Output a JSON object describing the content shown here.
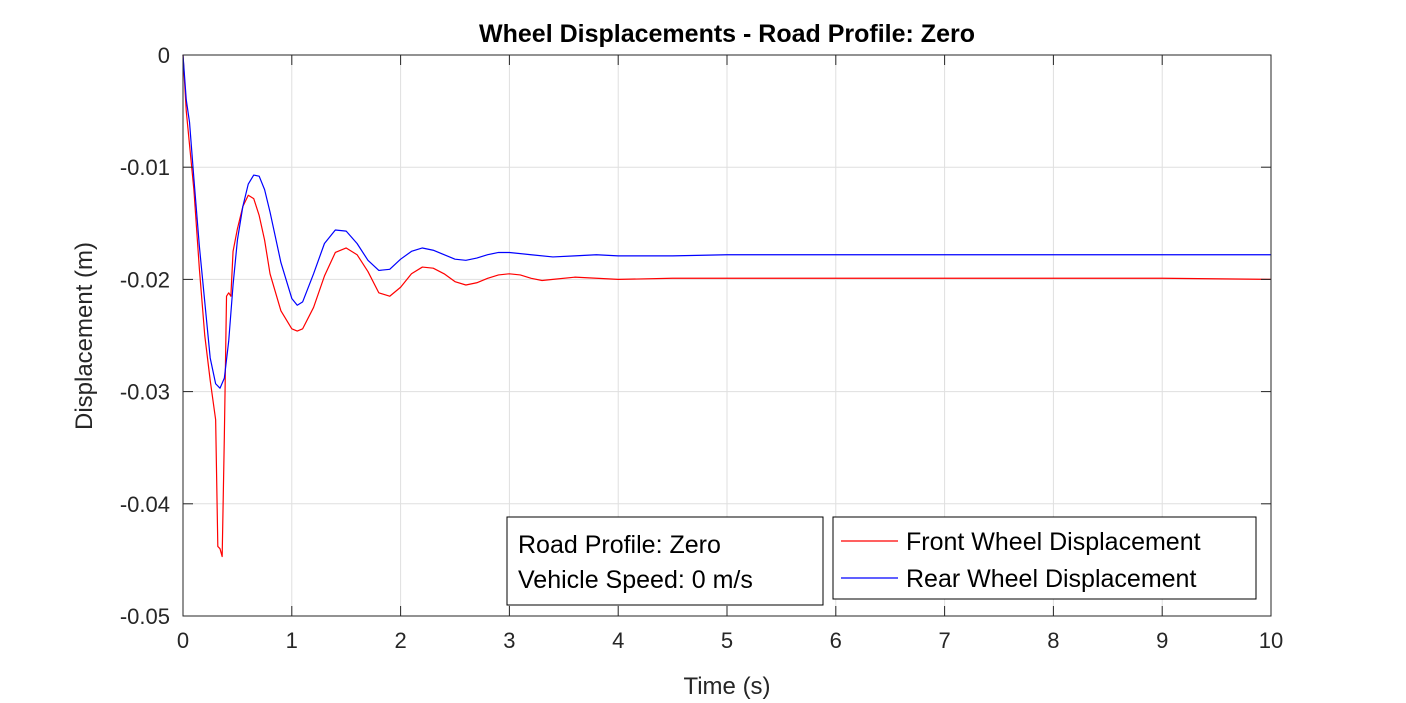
{
  "chart_data": {
    "type": "line",
    "title": "Wheel Displacements - Road Profile: Zero",
    "xlabel": "Time (s)",
    "ylabel": "Displacement (m)",
    "xlim": [
      0,
      10
    ],
    "ylim": [
      -0.05,
      0
    ],
    "xticks": [
      "0",
      "1",
      "2",
      "3",
      "4",
      "5",
      "6",
      "7",
      "8",
      "9",
      "10"
    ],
    "yticks": [
      "0",
      "-0.01",
      "-0.02",
      "-0.03",
      "-0.04",
      "-0.05"
    ],
    "grid": true,
    "legend_position": "bottom-right",
    "annotation": [
      "Road Profile: Zero",
      "Vehicle Speed: 0 m/s"
    ],
    "colors": {
      "front": "#ff0000",
      "rear": "#0000ff"
    },
    "series": [
      {
        "name": "Front Wheel Displacement",
        "color": "#ff0000",
        "x": [
          0,
          0.03,
          0.06,
          0.1,
          0.15,
          0.2,
          0.25,
          0.3,
          0.32,
          0.34,
          0.36,
          0.38,
          0.4,
          0.42,
          0.44,
          0.46,
          0.48,
          0.5,
          0.55,
          0.6,
          0.65,
          0.7,
          0.75,
          0.8,
          0.9,
          1.0,
          1.05,
          1.1,
          1.2,
          1.3,
          1.4,
          1.5,
          1.6,
          1.7,
          1.8,
          1.9,
          2.0,
          2.1,
          2.2,
          2.3,
          2.4,
          2.5,
          2.6,
          2.7,
          2.8,
          2.9,
          3.0,
          3.1,
          3.2,
          3.3,
          3.4,
          3.6,
          3.8,
          4.0,
          4.5,
          5.0,
          6.0,
          7.0,
          8.0,
          9.0,
          10.0
        ],
        "y": [
          0,
          -0.005,
          -0.008,
          -0.012,
          -0.019,
          -0.025,
          -0.029,
          -0.0325,
          -0.0438,
          -0.044,
          -0.0447,
          -0.034,
          -0.0215,
          -0.0212,
          -0.0215,
          -0.0175,
          -0.0165,
          -0.0155,
          -0.0135,
          -0.0125,
          -0.0128,
          -0.0143,
          -0.0165,
          -0.0195,
          -0.0228,
          -0.0244,
          -0.0246,
          -0.0244,
          -0.0225,
          -0.0197,
          -0.0176,
          -0.0172,
          -0.0178,
          -0.0193,
          -0.0212,
          -0.0215,
          -0.0207,
          -0.0195,
          -0.0189,
          -0.019,
          -0.0195,
          -0.0202,
          -0.0205,
          -0.0203,
          -0.0199,
          -0.0196,
          -0.0195,
          -0.0196,
          -0.0199,
          -0.0201,
          -0.02,
          -0.0198,
          -0.0199,
          -0.02,
          -0.0199,
          -0.0199,
          -0.0199,
          -0.0199,
          -0.0199,
          -0.0199,
          -0.02
        ]
      },
      {
        "name": "Rear Wheel Displacement",
        "color": "#0000ff",
        "x": [
          0,
          0.03,
          0.06,
          0.1,
          0.15,
          0.2,
          0.25,
          0.3,
          0.34,
          0.38,
          0.42,
          0.46,
          0.5,
          0.55,
          0.6,
          0.65,
          0.7,
          0.75,
          0.8,
          0.9,
          1.0,
          1.05,
          1.1,
          1.2,
          1.3,
          1.4,
          1.5,
          1.6,
          1.7,
          1.8,
          1.9,
          2.0,
          2.1,
          2.2,
          2.3,
          2.4,
          2.5,
          2.6,
          2.7,
          2.8,
          2.9,
          3.0,
          3.2,
          3.4,
          3.6,
          3.8,
          4.0,
          4.5,
          5.0,
          6.0,
          7.0,
          8.0,
          9.0,
          10.0
        ],
        "y": [
          0,
          -0.004,
          -0.006,
          -0.011,
          -0.017,
          -0.022,
          -0.027,
          -0.0293,
          -0.0297,
          -0.0288,
          -0.0255,
          -0.0205,
          -0.0165,
          -0.0135,
          -0.0115,
          -0.0107,
          -0.0108,
          -0.012,
          -0.014,
          -0.0185,
          -0.0217,
          -0.0223,
          -0.022,
          -0.0195,
          -0.0168,
          -0.0156,
          -0.0157,
          -0.0168,
          -0.0183,
          -0.0192,
          -0.0191,
          -0.0182,
          -0.0175,
          -0.0172,
          -0.0174,
          -0.0178,
          -0.0182,
          -0.0183,
          -0.0181,
          -0.0178,
          -0.0176,
          -0.0176,
          -0.0178,
          -0.018,
          -0.0179,
          -0.0178,
          -0.0179,
          -0.0179,
          -0.0178,
          -0.0178,
          -0.0178,
          -0.0178,
          -0.0178,
          -0.0178
        ]
      }
    ]
  }
}
